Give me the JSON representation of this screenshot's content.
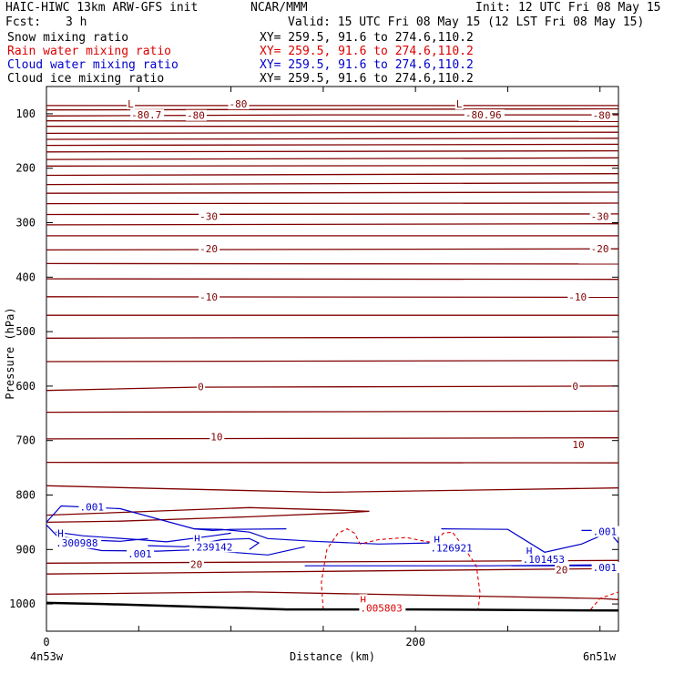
{
  "header": {
    "title_left": "HAIC-HIWC 13km ARW-GFS init",
    "org": "NCAR/MMM",
    "init": "Init: 12 UTC Fri 08 May 15",
    "fcst_label": "Fcst:",
    "fcst_value": "3 h",
    "valid": "Valid: 15 UTC Fri 08 May 15 (12 LST Fri 08 May 15)",
    "fields": [
      {
        "name": "Snow mixing ratio",
        "xy": "XY= 259.5, 91.6 to 274.6,110.2",
        "color": "#000000"
      },
      {
        "name": "Rain water mixing ratio",
        "xy": "XY= 259.5, 91.6 to 274.6,110.2",
        "color": "#dd0000"
      },
      {
        "name": "Cloud water mixing ratio",
        "xy": "XY= 259.5, 91.6 to 274.6,110.2",
        "color": "#0000cc"
      },
      {
        "name": "Cloud ice mixing ratio",
        "xy": "XY= 259.5, 91.6 to 274.6,110.2",
        "color": "#000000"
      }
    ]
  },
  "chart_data": {
    "type": "line",
    "title": "",
    "xlabel": "Distance (km)",
    "ylabel": "Pressure (hPa)",
    "xlim": [
      0,
      310
    ],
    "ylim": [
      1050,
      50
    ],
    "x_ticks": [
      0,
      200
    ],
    "y_ticks": [
      100,
      200,
      300,
      400,
      500,
      600,
      700,
      800,
      900,
      1000
    ],
    "left_endpoint": "4n53w",
    "right_endpoint": "6n51w",
    "colors": {
      "temperature": "#800000",
      "cloud_water": "#0000cc",
      "rain": "#dd0000",
      "ground": "#000000"
    },
    "temperature_isotherms": [
      {
        "x": [
          0,
          300,
          310
        ],
        "y": [
          85,
          85,
          85
        ]
      },
      {
        "x": [
          0,
          300,
          310
        ],
        "y": [
          93,
          91,
          91
        ]
      },
      {
        "x": [
          0,
          150,
          310
        ],
        "y": [
          104,
          102,
          102
        ]
      },
      {
        "x": [
          0,
          310
        ],
        "y": [
          113,
          114
        ]
      },
      {
        "x": [
          0,
          310
        ],
        "y": [
          123,
          123
        ]
      },
      {
        "x": [
          0,
          310
        ],
        "y": [
          136,
          134
        ]
      },
      {
        "x": [
          0,
          310
        ],
        "y": [
          147,
          145
        ]
      },
      {
        "x": [
          0,
          310
        ],
        "y": [
          158,
          156
        ]
      },
      {
        "x": [
          0,
          310
        ],
        "y": [
          170,
          168
        ]
      },
      {
        "x": [
          0,
          310
        ],
        "y": [
          184,
          181
        ]
      },
      {
        "x": [
          0,
          310
        ],
        "y": [
          196,
          195
        ]
      },
      {
        "x": [
          0,
          310
        ],
        "y": [
          213,
          210
        ]
      },
      {
        "x": [
          0,
          310
        ],
        "y": [
          230,
          227
        ]
      },
      {
        "x": [
          0,
          310
        ],
        "y": [
          246,
          244
        ]
      },
      {
        "x": [
          0,
          310
        ],
        "y": [
          265,
          264
        ]
      },
      {
        "x": [
          0,
          310
        ],
        "y": [
          285,
          284
        ]
      },
      {
        "x": [
          0,
          310
        ],
        "y": [
          304,
          302
        ]
      },
      {
        "x": [
          0,
          310
        ],
        "y": [
          324,
          324
        ]
      },
      {
        "x": [
          0,
          310
        ],
        "y": [
          350,
          348
        ]
      },
      {
        "x": [
          0,
          310
        ],
        "y": [
          375,
          376
        ]
      },
      {
        "x": [
          0,
          310
        ],
        "y": [
          403,
          404
        ]
      },
      {
        "x": [
          0,
          310
        ],
        "y": [
          436,
          437
        ]
      },
      {
        "x": [
          0,
          310
        ],
        "y": [
          470,
          470
        ]
      },
      {
        "x": [
          0,
          310
        ],
        "y": [
          512,
          510
        ]
      },
      {
        "x": [
          0,
          310
        ],
        "y": [
          555,
          553
        ]
      },
      {
        "x": [
          0,
          80,
          310
        ],
        "y": [
          608,
          602,
          600
        ]
      },
      {
        "x": [
          0,
          310
        ],
        "y": [
          648,
          646
        ]
      },
      {
        "x": [
          0,
          310
        ],
        "y": [
          697,
          695
        ]
      },
      {
        "x": [
          0,
          310
        ],
        "y": [
          740,
          741
        ]
      },
      {
        "x": [
          0,
          60,
          150,
          310
        ],
        "y": [
          783,
          788,
          795,
          787
        ]
      },
      {
        "x": [
          0,
          40,
          110,
          160,
          175
        ],
        "y": [
          837,
          832,
          823,
          828,
          830
        ]
      },
      {
        "x": [
          0,
          40,
          110,
          160,
          175
        ],
        "y": [
          850,
          848,
          840,
          833,
          830
        ]
      },
      {
        "x": [
          0,
          310
        ],
        "y": [
          925,
          920
        ]
      },
      {
        "x": [
          0,
          310
        ],
        "y": [
          945,
          935
        ]
      },
      {
        "x": [
          0,
          110,
          300,
          310
        ],
        "y": [
          982,
          978,
          990,
          992
        ]
      }
    ],
    "isotherm_labels": [
      {
        "text": "L",
        "x": 44,
        "y": 82
      },
      {
        "text": "-80.7",
        "x": 46,
        "y": 102
      },
      {
        "text": "-80",
        "x": 99,
        "y": 82
      },
      {
        "text": "-80",
        "x": 76,
        "y": 103
      },
      {
        "text": "L",
        "x": 222,
        "y": 82
      },
      {
        "text": "-80.96",
        "x": 227,
        "y": 102
      },
      {
        "text": "-80",
        "x": 296,
        "y": 103
      },
      {
        "text": "-30",
        "x": 83,
        "y": 288
      },
      {
        "text": "-30",
        "x": 295,
        "y": 288
      },
      {
        "text": "-20",
        "x": 83,
        "y": 348
      },
      {
        "text": "-20",
        "x": 295,
        "y": 348
      },
      {
        "text": "-10",
        "x": 83,
        "y": 436
      },
      {
        "text": "-10",
        "x": 283,
        "y": 436
      },
      {
        "text": "0",
        "x": 82,
        "y": 601
      },
      {
        "text": "0",
        "x": 285,
        "y": 600
      },
      {
        "text": "10",
        "x": 89,
        "y": 693
      },
      {
        "text": "10",
        "x": 285,
        "y": 707
      },
      {
        "text": "20",
        "x": 78,
        "y": 927
      },
      {
        "text": "20",
        "x": 276,
        "y": 937
      }
    ],
    "cloud_water_contours": [
      {
        "x": [
          0,
          8,
          40,
          80,
          90,
          100,
          130
        ],
        "y": [
          850,
          820,
          825,
          862,
          865,
          863,
          862
        ]
      },
      {
        "x": [
          5,
          20,
          50,
          65,
          90,
          100
        ],
        "y": [
          868,
          875,
          882,
          886,
          875,
          870
        ]
      },
      {
        "x": [
          10,
          25,
          40,
          55
        ],
        "y": [
          878,
          883,
          885,
          880
        ]
      },
      {
        "x": [
          0,
          10,
          30,
          60,
          85,
          100,
          120,
          140
        ],
        "y": [
          855,
          890,
          902,
          903,
          900,
          905,
          910,
          895
        ]
      },
      {
        "x": [
          55,
          75,
          95,
          110,
          115,
          110
        ],
        "y": [
          893,
          895,
          882,
          880,
          888,
          900
        ]
      },
      {
        "x": [
          80,
          95,
          110,
          120,
          145,
          180,
          208
        ],
        "y": [
          862,
          863,
          868,
          880,
          885,
          890,
          888
        ]
      },
      {
        "x": [
          140,
          240,
          310
        ],
        "y": [
          930,
          930,
          928
        ]
      },
      {
        "x": [
          214,
          250,
          270,
          290,
          305,
          310
        ],
        "y": [
          862,
          863,
          905,
          890,
          868,
          888
        ]
      },
      {
        "x": [
          290,
          310
        ],
        "y": [
          865,
          865
        ]
      },
      {
        "x": [
          252,
          270,
          310
        ],
        "y": [
          930,
          930,
          930
        ]
      }
    ],
    "cloud_water_labels": [
      {
        "text": ".001",
        "x": 18,
        "y": 822
      },
      {
        "text": "H",
        "x": 6,
        "y": 870
      },
      {
        "text": ".300988",
        "x": 5,
        "y": 888
      },
      {
        "text": ".001",
        "x": 44,
        "y": 908
      },
      {
        "text": "H",
        "x": 80,
        "y": 880
      },
      {
        "text": ".239142",
        "x": 78,
        "y": 895
      },
      {
        "text": "H",
        "x": 210,
        "y": 882
      },
      {
        "text": ".126921",
        "x": 208,
        "y": 897
      },
      {
        "text": "H",
        "x": 260,
        "y": 903
      },
      {
        "text": ".101453",
        "x": 258,
        "y": 918
      },
      {
        "text": ".001",
        "x": 296,
        "y": 867
      },
      {
        "text": ".001",
        "x": 296,
        "y": 933
      }
    ],
    "rain_contours": [
      {
        "x": [
          150,
          149,
          152,
          158,
          163,
          167,
          170,
          180,
          195,
          205,
          211,
          215,
          220,
          226,
          233,
          235,
          234
        ],
        "y": [
          1010,
          960,
          900,
          870,
          862,
          870,
          890,
          882,
          878,
          885,
          888,
          870,
          868,
          895,
          930,
          980,
          1010
        ]
      },
      {
        "x": [
          295,
          300,
          310
        ],
        "y": [
          1010,
          990,
          978
        ]
      }
    ],
    "rain_labels": [
      {
        "text": "H",
        "x": 170,
        "y": 992
      },
      {
        "text": ".005803",
        "x": 170,
        "y": 1007
      }
    ],
    "ground": {
      "x": [
        0,
        30,
        60,
        100,
        130,
        200,
        310
      ],
      "y": [
        998,
        1000,
        1003,
        1007,
        1010,
        1010,
        1012
      ]
    }
  }
}
